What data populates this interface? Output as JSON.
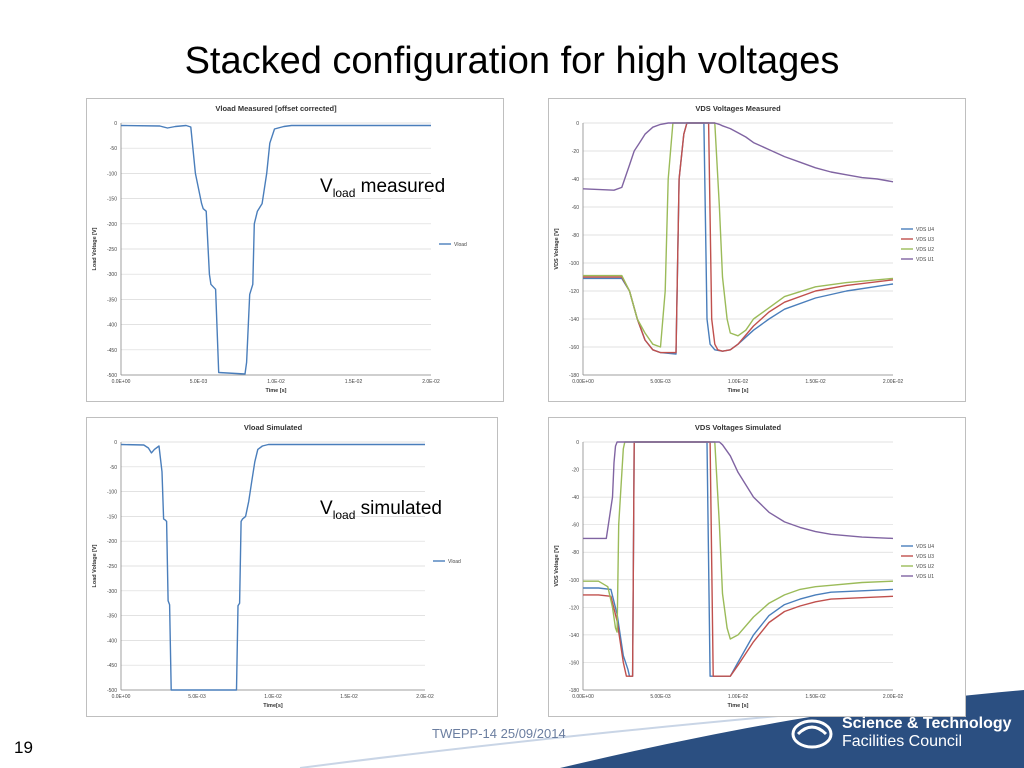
{
  "slide": {
    "title": "Stacked configuration for high voltages",
    "number": "19",
    "footer": "TWEPP-14 25/09/2014",
    "callout_measured": {
      "main": "V",
      "sub": "load",
      "text": " measured"
    },
    "callout_simulated": {
      "main": "V",
      "sub": "load",
      "text": " simulated"
    },
    "logo_line1": "Science & Technology",
    "logo_line2": "Facilities Council",
    "colors": {
      "vload": "#4a7ebb",
      "u4": "#4a7ebb",
      "u3": "#c0504d",
      "u2": "#9bbb59",
      "u1": "#8064a2",
      "footer_band": "#2b4f81"
    }
  },
  "chart_data": [
    {
      "type": "line",
      "title": "Vload Measured [offset corrected]",
      "xlabel": "Time [s]",
      "ylabel": "Load Voltage [V]",
      "xlim": [
        0,
        0.02
      ],
      "ylim": [
        -500,
        0
      ],
      "xticks": [
        0,
        0.005,
        0.01,
        0.015,
        0.02
      ],
      "xtick_labels": [
        "0.0E+00",
        "5.0E-03",
        "1.0E-02",
        "1.5E-02",
        "2.0E-02"
      ],
      "yticks": [
        0,
        -50,
        -100,
        -150,
        -200,
        -250,
        -300,
        -350,
        -400,
        -450,
        -500
      ],
      "ytick_labels": [
        "0",
        "-50",
        "-100",
        "-150",
        "-200",
        "-250",
        "-300",
        "-350",
        "-400",
        "-450",
        "-500"
      ],
      "grid": true,
      "legend": "right",
      "series": [
        {
          "name": "Vload",
          "color": "#4a7ebb",
          "x": [
            0,
            0.0025,
            0.003,
            0.0035,
            0.0042,
            0.0045,
            0.0048,
            0.0052,
            0.0053,
            0.0055,
            0.0057,
            0.0058,
            0.0061,
            0.0063,
            0.008,
            0.0081,
            0.0083,
            0.0085,
            0.0086,
            0.0088,
            0.0091,
            0.0094,
            0.0096,
            0.0099,
            0.0105,
            0.011,
            0.02
          ],
          "y": [
            -5,
            -6,
            -10,
            -7,
            -5,
            -8,
            -100,
            -160,
            -170,
            -175,
            -300,
            -320,
            -330,
            -495,
            -498,
            -475,
            -340,
            -320,
            -200,
            -175,
            -160,
            -100,
            -40,
            -12,
            -7,
            -5,
            -5
          ]
        }
      ]
    },
    {
      "type": "line",
      "title": "VDS Voltages Measured",
      "xlabel": "Time [s]",
      "ylabel": "VDS Voltage [V]",
      "xlim": [
        0,
        0.02
      ],
      "ylim": [
        -180,
        0
      ],
      "xticks": [
        0,
        0.005,
        0.01,
        0.015,
        0.02
      ],
      "xtick_labels": [
        "0.00E+00",
        "5.00E-03",
        "1.00E-02",
        "1.50E-02",
        "2.00E-02"
      ],
      "yticks": [
        0,
        -20,
        -40,
        -60,
        -80,
        -100,
        -120,
        -140,
        -160,
        -180
      ],
      "ytick_labels": [
        "0",
        "-20",
        "-40",
        "-60",
        "-80",
        "-100",
        "-120",
        "-140",
        "-160",
        "-180"
      ],
      "grid": true,
      "legend": "right",
      "series": [
        {
          "name": "VDS U4",
          "color": "#4a7ebb",
          "x": [
            0,
            0.0025,
            0.003,
            0.0035,
            0.004,
            0.0045,
            0.005,
            0.006,
            0.0062,
            0.0065,
            0.0067,
            0.0078,
            0.008,
            0.0082,
            0.0085,
            0.009,
            0.0095,
            0.01,
            0.011,
            0.012,
            0.013,
            0.015,
            0.017,
            0.02
          ],
          "y": [
            -111,
            -111,
            -120,
            -140,
            -155,
            -162,
            -164,
            -165,
            -40,
            -8,
            0,
            0,
            -140,
            -158,
            -162,
            -163,
            -162,
            -158,
            -148,
            -140,
            -133,
            -125,
            -120,
            -115
          ]
        },
        {
          "name": "VDS U3",
          "color": "#c0504d",
          "x": [
            0,
            0.0025,
            0.003,
            0.0035,
            0.004,
            0.0045,
            0.005,
            0.006,
            0.0062,
            0.0065,
            0.0067,
            0.0081,
            0.0083,
            0.0085,
            0.0087,
            0.009,
            0.0095,
            0.01,
            0.011,
            0.012,
            0.013,
            0.015,
            0.017,
            0.02
          ],
          "y": [
            -110,
            -110,
            -120,
            -140,
            -155,
            -162,
            -164,
            -164,
            -40,
            -8,
            0,
            0,
            -140,
            -158,
            -162,
            -163,
            -162,
            -158,
            -145,
            -135,
            -128,
            -120,
            -116,
            -112
          ]
        },
        {
          "name": "VDS U2",
          "color": "#9bbb59",
          "x": [
            0,
            0.0025,
            0.003,
            0.0035,
            0.004,
            0.0045,
            0.005,
            0.0053,
            0.0055,
            0.0058,
            0.0085,
            0.0088,
            0.009,
            0.0093,
            0.0095,
            0.01,
            0.0105,
            0.011,
            0.012,
            0.013,
            0.015,
            0.017,
            0.02
          ],
          "y": [
            -109,
            -109,
            -120,
            -140,
            -150,
            -158,
            -160,
            -120,
            -40,
            0,
            0,
            -60,
            -110,
            -140,
            -150,
            -152,
            -148,
            -140,
            -132,
            -124,
            -117,
            -114,
            -111
          ]
        },
        {
          "name": "VDS U1",
          "color": "#8064a2",
          "x": [
            0,
            0.002,
            0.0025,
            0.003,
            0.0033,
            0.0036,
            0.004,
            0.0045,
            0.005,
            0.0055,
            0.006,
            0.0085,
            0.0088,
            0.009,
            0.0095,
            0.01,
            0.0105,
            0.011,
            0.012,
            0.013,
            0.014,
            0.015,
            0.016,
            0.017,
            0.018,
            0.019,
            0.02
          ],
          "y": [
            -47,
            -48,
            -46,
            -30,
            -20,
            -15,
            -8,
            -3,
            -1,
            0,
            0,
            0,
            -1,
            -2,
            -4,
            -7,
            -10,
            -14,
            -19,
            -24,
            -28,
            -32,
            -35,
            -37,
            -39,
            -40,
            -42
          ]
        }
      ]
    },
    {
      "type": "line",
      "title": "Vload Simulated",
      "xlabel": "Time[s]",
      "ylabel": "Load Voltage [V]",
      "xlim": [
        0,
        0.02
      ],
      "ylim": [
        -500,
        0
      ],
      "xticks": [
        0,
        0.005,
        0.01,
        0.015,
        0.02
      ],
      "xtick_labels": [
        "0.0E+00",
        "5.0E-03",
        "1.0E-02",
        "1.5E-02",
        "2.0E-02"
      ],
      "yticks": [
        0,
        -50,
        -100,
        -150,
        -200,
        -250,
        -300,
        -350,
        -400,
        -450,
        -500
      ],
      "ytick_labels": [
        "0",
        "-50",
        "-100",
        "-150",
        "-200",
        "-250",
        "-300",
        "-350",
        "-400",
        "-450",
        "-500"
      ],
      "grid": true,
      "legend": "right",
      "series": [
        {
          "name": "Vload",
          "color": "#4a7ebb",
          "x": [
            0,
            0.0015,
            0.0018,
            0.002,
            0.0022,
            0.0025,
            0.0027,
            0.0028,
            0.0029,
            0.003,
            0.0031,
            0.0032,
            0.0033,
            0.0034,
            0.0075,
            0.0076,
            0.0077,
            0.0078,
            0.0079,
            0.008,
            0.0082,
            0.0084,
            0.0086,
            0.0088,
            0.009,
            0.0093,
            0.0097,
            0.02
          ],
          "y": [
            -5,
            -6,
            -12,
            -22,
            -15,
            -8,
            -60,
            -155,
            -157,
            -160,
            -320,
            -328,
            -500,
            -500,
            -500,
            -500,
            -330,
            -325,
            -160,
            -155,
            -150,
            -120,
            -80,
            -40,
            -15,
            -8,
            -5,
            -5
          ]
        }
      ]
    },
    {
      "type": "line",
      "title": "VDS Voltages Simulated",
      "xlabel": "Time [s]",
      "ylabel": "VDS Voltage [V]",
      "xlim": [
        0,
        0.02
      ],
      "ylim": [
        -180,
        0
      ],
      "xticks": [
        0,
        0.005,
        0.01,
        0.015,
        0.02
      ],
      "xtick_labels": [
        "0.00E+00",
        "5.00E-03",
        "1.00E-02",
        "1.50E-02",
        "2.00E-02"
      ],
      "yticks": [
        0,
        -20,
        -40,
        -60,
        -80,
        -100,
        -120,
        -140,
        -160,
        -180
      ],
      "ytick_labels": [
        "0",
        "-20",
        "-40",
        "-60",
        "-80",
        "-100",
        "-120",
        "-140",
        "-160",
        "-180"
      ],
      "grid": true,
      "legend": "right",
      "series": [
        {
          "name": "VDS U4",
          "color": "#4a7ebb",
          "x": [
            0,
            0.001,
            0.0018,
            0.0022,
            0.0026,
            0.0029,
            0.003,
            0.0032,
            0.0033,
            0.008,
            0.0082,
            0.0083,
            0.0095,
            0.01,
            0.011,
            0.012,
            0.013,
            0.014,
            0.015,
            0.016,
            0.018,
            0.02
          ],
          "y": [
            -106,
            -106,
            -107,
            -125,
            -155,
            -165,
            -170,
            -170,
            0,
            0,
            -170,
            -170,
            -170,
            -160,
            -140,
            -126,
            -118,
            -114,
            -111,
            -109,
            -108,
            -107
          ]
        },
        {
          "name": "VDS U3",
          "color": "#c0504d",
          "x": [
            0,
            0.001,
            0.0018,
            0.0022,
            0.0026,
            0.0028,
            0.0029,
            0.0032,
            0.0033,
            0.0082,
            0.0084,
            0.0085,
            0.0095,
            0.01,
            0.011,
            0.012,
            0.013,
            0.014,
            0.015,
            0.016,
            0.018,
            0.02
          ],
          "y": [
            -111,
            -111,
            -112,
            -130,
            -160,
            -170,
            -170,
            -170,
            0,
            0,
            -170,
            -170,
            -170,
            -162,
            -145,
            -131,
            -123,
            -119,
            -116,
            -114,
            -113,
            -112
          ]
        },
        {
          "name": "VDS U2",
          "color": "#9bbb59",
          "x": [
            0,
            0.001,
            0.0016,
            0.0019,
            0.0021,
            0.0022,
            0.0023,
            0.0026,
            0.0027,
            0.0085,
            0.0088,
            0.009,
            0.0093,
            0.0095,
            0.01,
            0.011,
            0.012,
            0.013,
            0.014,
            0.015,
            0.016,
            0.018,
            0.02
          ],
          "y": [
            -101,
            -101,
            -105,
            -120,
            -135,
            -138,
            -60,
            -5,
            0,
            0,
            -60,
            -110,
            -135,
            -143,
            -140,
            -127,
            -117,
            -111,
            -107,
            -105,
            -104,
            -102,
            -101
          ]
        },
        {
          "name": "VDS U1",
          "color": "#8064a2",
          "x": [
            0,
            0.0015,
            0.0019,
            0.002,
            0.0021,
            0.0022,
            0.0085,
            0.0088,
            0.009,
            0.0095,
            0.01,
            0.011,
            0.012,
            0.013,
            0.014,
            0.015,
            0.016,
            0.017,
            0.018,
            0.02
          ],
          "y": [
            -70,
            -70,
            -40,
            -15,
            -3,
            0,
            0,
            0,
            -2,
            -10,
            -22,
            -40,
            -51,
            -58,
            -62,
            -65,
            -67,
            -68,
            -69,
            -70
          ]
        }
      ]
    }
  ]
}
